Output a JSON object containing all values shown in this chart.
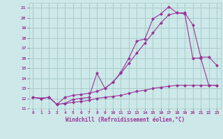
{
  "background_color": "#cce8e8",
  "grid_color": "#aacccc",
  "line_color": "#993399",
  "xlabel": "Windchill (Refroidissement éolien,°C)",
  "xlim": [
    -0.5,
    23.5
  ],
  "ylim": [
    11,
    21.5
  ],
  "xticks": [
    0,
    1,
    2,
    3,
    4,
    5,
    6,
    7,
    8,
    9,
    10,
    11,
    12,
    13,
    14,
    15,
    16,
    17,
    18,
    19,
    20,
    21,
    22,
    23
  ],
  "yticks": [
    11,
    12,
    13,
    14,
    15,
    16,
    17,
    18,
    19,
    20,
    21
  ],
  "line1_x": [
    0,
    1,
    2,
    3,
    4,
    5,
    6,
    7,
    8,
    9,
    10,
    11,
    12,
    13,
    14,
    15,
    16,
    17,
    18,
    19,
    20,
    21,
    22,
    23
  ],
  "line1_y": [
    12.1,
    12.0,
    12.1,
    11.4,
    11.5,
    11.9,
    12.0,
    12.1,
    14.5,
    13.0,
    13.6,
    14.6,
    16.0,
    17.7,
    17.9,
    19.9,
    20.4,
    21.1,
    20.5,
    20.5,
    19.3,
    16.1,
    16.1,
    15.3
  ],
  "line2_x": [
    0,
    1,
    2,
    3,
    4,
    5,
    6,
    7,
    8,
    9,
    10,
    11,
    12,
    13,
    14,
    15,
    16,
    17,
    18,
    19,
    20,
    21,
    22,
    23
  ],
  "line2_y": [
    12.1,
    12.0,
    12.1,
    11.4,
    12.1,
    12.3,
    12.4,
    12.5,
    12.7,
    13.0,
    13.6,
    14.5,
    15.5,
    16.5,
    17.5,
    18.5,
    19.5,
    20.3,
    20.5,
    20.4,
    16.0,
    16.0,
    13.3,
    13.3
  ],
  "line3_x": [
    0,
    1,
    2,
    3,
    4,
    5,
    6,
    7,
    8,
    9,
    10,
    11,
    12,
    13,
    14,
    15,
    16,
    17,
    18,
    19,
    20,
    21,
    22,
    23
  ],
  "line3_y": [
    12.1,
    12.0,
    12.1,
    11.4,
    11.5,
    11.6,
    11.7,
    11.8,
    12.0,
    12.1,
    12.2,
    12.3,
    12.5,
    12.7,
    12.8,
    13.0,
    13.1,
    13.2,
    13.3,
    13.3,
    13.3,
    13.3,
    13.3,
    13.3
  ]
}
